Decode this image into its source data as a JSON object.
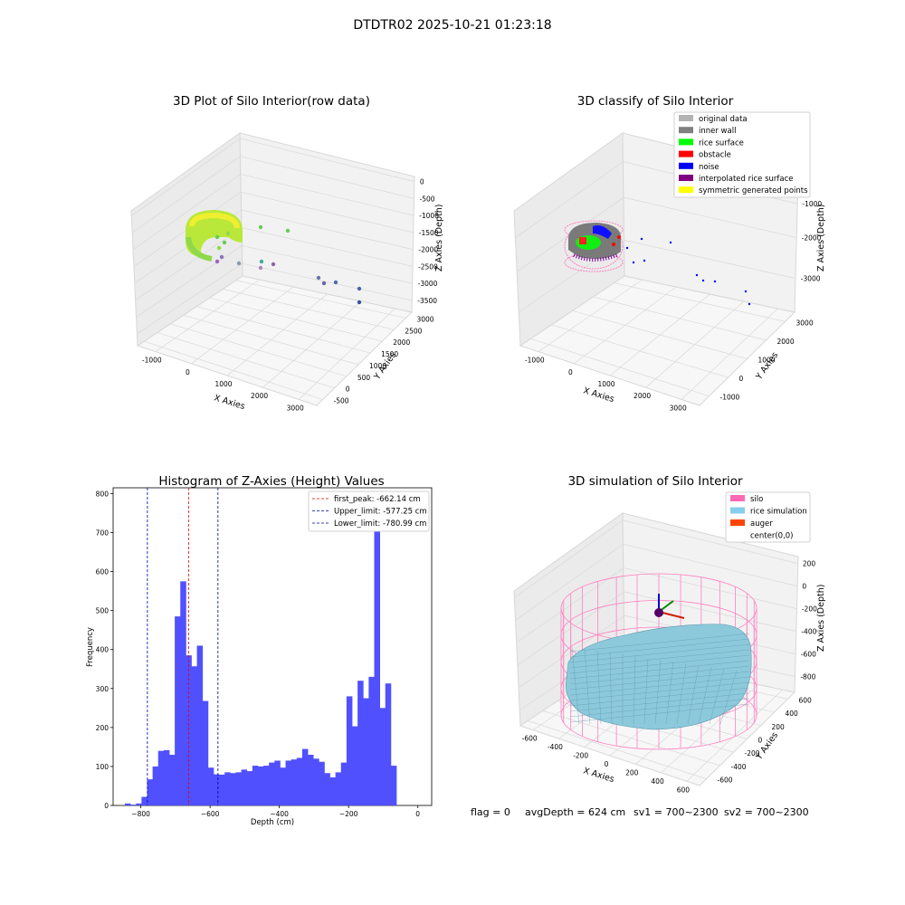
{
  "suptitle": "DTDTR02 2025-10-21 01:23:18",
  "footer": {
    "flag": "flag = 0",
    "avg_depth": "avgDepth = 624 cm",
    "sv1": "sv1 = 700~2300",
    "sv2": "sv2 = 700~2300"
  },
  "chart_data": [
    {
      "type": "scatter",
      "title": "3D Plot of Silo Interior(row data)",
      "xlabel": "X Axies",
      "ylabel": "Y Axies",
      "zlabel": "Z Axies (Depth)",
      "x_ticks": [
        "-1000",
        "0",
        "1000",
        "2000",
        "3000"
      ],
      "y_ticks": [
        "-500",
        "0",
        "500",
        "1000",
        "1500",
        "2000",
        "2500",
        "3000"
      ],
      "z_ticks": [
        "0",
        "-500",
        "-1000",
        "-1500",
        "-2000",
        "-2500",
        "-3000",
        "-3500"
      ]
    },
    {
      "type": "scatter",
      "title": "3D classify of Silo Interior",
      "xlabel": "X Axies",
      "ylabel": "Y Axies",
      "zlabel": "Z Axies (Depth)",
      "x_ticks": [
        "-1000",
        "0",
        "1000",
        "2000",
        "3000"
      ],
      "y_ticks": [
        "-1000",
        "0",
        "1000",
        "2000",
        "3000"
      ],
      "z_ticks": [
        "-1000",
        "-2000",
        "-3000"
      ],
      "legend_position": "top-right",
      "legend": [
        {
          "label": "original data",
          "color": "#b3b3b3"
        },
        {
          "label": "inner wall",
          "color": "#808080"
        },
        {
          "label": "rice surface",
          "color": "#00ff00"
        },
        {
          "label": "obstacle",
          "color": "#ff0000"
        },
        {
          "label": "noise",
          "color": "#0000ff"
        },
        {
          "label": "interpolated rice surface",
          "color": "#800080"
        },
        {
          "label": "symmetric generated points",
          "color": "#ffff00"
        }
      ]
    },
    {
      "type": "bar",
      "title": "Histogram of Z-Axies (Height) Values",
      "xlabel": "Depth (cm)",
      "ylabel": "Frequency",
      "xlim": [
        -880,
        40
      ],
      "ylim": [
        0,
        815
      ],
      "x_ticks": [
        -800,
        -600,
        -400,
        -200,
        0
      ],
      "y_ticks": [
        0,
        100,
        200,
        300,
        400,
        500,
        600,
        700,
        800
      ],
      "bar_color": "#5050ff",
      "bin_width": 16,
      "bins": [
        {
          "x": -838,
          "v": 5
        },
        {
          "x": -822,
          "v": 2
        },
        {
          "x": -806,
          "v": 5
        },
        {
          "x": -790,
          "v": 22
        },
        {
          "x": -774,
          "v": 67
        },
        {
          "x": -758,
          "v": 100
        },
        {
          "x": -742,
          "v": 140
        },
        {
          "x": -726,
          "v": 142
        },
        {
          "x": -710,
          "v": 130
        },
        {
          "x": -694,
          "v": 485
        },
        {
          "x": -678,
          "v": 575
        },
        {
          "x": -662,
          "v": 385
        },
        {
          "x": -646,
          "v": 357
        },
        {
          "x": -630,
          "v": 410
        },
        {
          "x": -614,
          "v": 268
        },
        {
          "x": -598,
          "v": 97
        },
        {
          "x": -582,
          "v": 80
        },
        {
          "x": -566,
          "v": 79
        },
        {
          "x": -550,
          "v": 85
        },
        {
          "x": -534,
          "v": 83
        },
        {
          "x": -518,
          "v": 85
        },
        {
          "x": -502,
          "v": 92
        },
        {
          "x": -486,
          "v": 88
        },
        {
          "x": -470,
          "v": 102
        },
        {
          "x": -454,
          "v": 100
        },
        {
          "x": -438,
          "v": 102
        },
        {
          "x": -422,
          "v": 110
        },
        {
          "x": -406,
          "v": 115
        },
        {
          "x": -390,
          "v": 97
        },
        {
          "x": -374,
          "v": 115
        },
        {
          "x": -358,
          "v": 118
        },
        {
          "x": -342,
          "v": 122
        },
        {
          "x": -326,
          "v": 145
        },
        {
          "x": -310,
          "v": 130
        },
        {
          "x": -294,
          "v": 120
        },
        {
          "x": -278,
          "v": 112
        },
        {
          "x": -262,
          "v": 83
        },
        {
          "x": -246,
          "v": 72
        },
        {
          "x": -230,
          "v": 85
        },
        {
          "x": -214,
          "v": 110
        },
        {
          "x": -198,
          "v": 280
        },
        {
          "x": -182,
          "v": 203
        },
        {
          "x": -166,
          "v": 320
        },
        {
          "x": -150,
          "v": 275
        },
        {
          "x": -134,
          "v": 330
        },
        {
          "x": -118,
          "v": 775
        },
        {
          "x": -102,
          "v": 250
        },
        {
          "x": -86,
          "v": 313
        },
        {
          "x": -70,
          "v": 102
        }
      ],
      "vlines": [
        {
          "label": "first_peak: -662.14 cm",
          "x": -662.14,
          "color": "#e00000"
        },
        {
          "label": "Upper_limit: -577.25 cm",
          "x": -577.25,
          "color": "#0000aa"
        },
        {
          "label": "Lower_limit: -780.99 cm",
          "x": -780.99,
          "color": "#0000aa"
        }
      ],
      "legend_position": "top-right"
    },
    {
      "type": "area",
      "title": "3D simulation of Silo Interior",
      "xlabel": "X Axies",
      "ylabel": "Y Axies",
      "zlabel": "Z Axies (Depth)",
      "x_ticks": [
        "-600",
        "-400",
        "-200",
        "0",
        "200",
        "400",
        "600"
      ],
      "y_ticks": [
        "-600",
        "-400",
        "-200",
        "0",
        "200",
        "400",
        "600"
      ],
      "z_ticks": [
        "200",
        "0",
        "-200",
        "-400",
        "-600",
        "-800"
      ],
      "legend_position": "top-right",
      "legend": [
        {
          "label": "silo",
          "color": "#ff69b4"
        },
        {
          "label": "rice simulation",
          "color": "#87ceeb"
        },
        {
          "label": "auger",
          "color": "#ff4500"
        },
        {
          "label": "center(0,0)",
          "color": "#ffffff"
        }
      ]
    }
  ]
}
